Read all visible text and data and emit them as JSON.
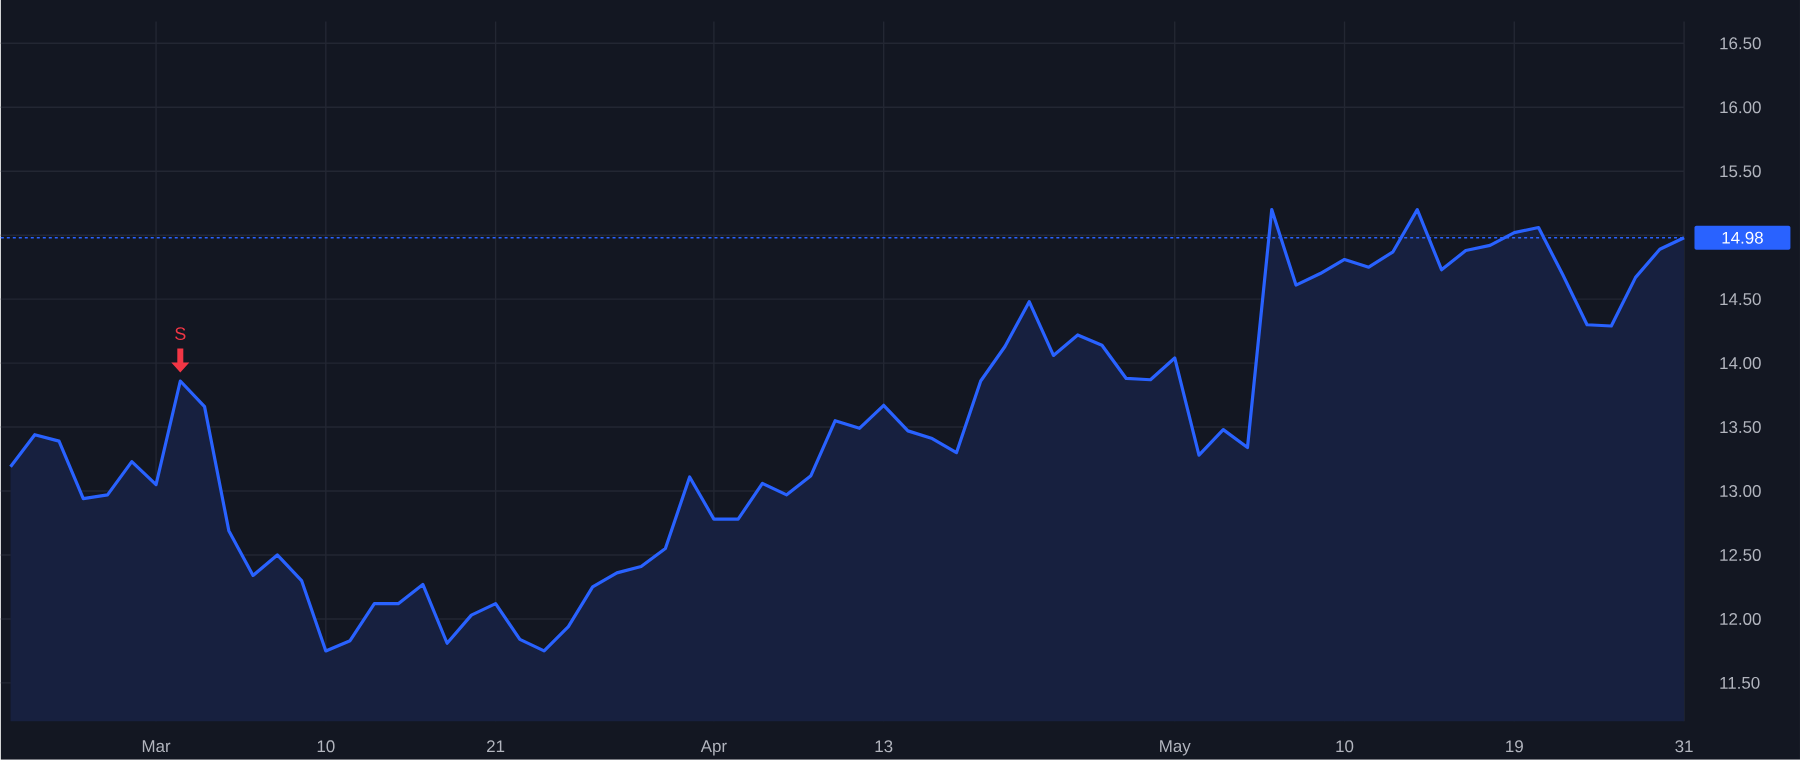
{
  "chart_data": {
    "type": "area",
    "color": "#2962ff",
    "categories": [
      null,
      null,
      null,
      null,
      null,
      null,
      "Mar",
      null,
      null,
      null,
      null,
      null,
      null,
      "10",
      null,
      null,
      null,
      null,
      null,
      null,
      "21",
      null,
      null,
      null,
      null,
      null,
      null,
      null,
      null,
      "Apr",
      null,
      null,
      null,
      null,
      null,
      null,
      "13",
      null,
      null,
      null,
      null,
      null,
      null,
      null,
      null,
      null,
      null,
      null,
      "May",
      null,
      null,
      null,
      null,
      null,
      null,
      "10",
      null,
      null,
      null,
      null,
      null,
      null,
      "19",
      null,
      null,
      null,
      null,
      null,
      null,
      "31"
    ],
    "values": [
      13.19,
      13.44,
      13.39,
      12.94,
      12.97,
      13.23,
      13.05,
      13.86,
      13.66,
      12.69,
      12.34,
      12.5,
      12.3,
      11.75,
      11.83,
      12.12,
      12.12,
      12.27,
      11.81,
      12.03,
      12.12,
      11.84,
      11.75,
      11.94,
      12.25,
      12.36,
      12.41,
      12.55,
      13.11,
      12.78,
      12.78,
      13.06,
      12.97,
      13.12,
      13.55,
      13.49,
      13.67,
      13.47,
      13.41,
      13.3,
      13.86,
      14.13,
      14.48,
      14.06,
      14.22,
      14.14,
      13.88,
      13.87,
      14.04,
      13.28,
      13.48,
      13.34,
      15.2,
      14.61,
      14.7,
      14.81,
      14.75,
      14.87,
      15.2,
      14.73,
      14.88,
      14.92,
      15.02,
      15.06,
      14.69,
      14.3,
      14.29,
      14.67,
      14.89,
      14.98
    ],
    "ylim": [
      11.2,
      16.67
    ],
    "yticks": [
      {
        "value": 11.5,
        "label": "11.50"
      },
      {
        "value": 12,
        "label": "12.00"
      },
      {
        "value": 12.5,
        "label": "12.50"
      },
      {
        "value": 13,
        "label": "13.00"
      },
      {
        "value": 13.5,
        "label": "13.50"
      },
      {
        "value": 14,
        "label": "14.00"
      },
      {
        "value": 14.5,
        "label": "14.50"
      },
      {
        "value": 15,
        "label": null
      },
      {
        "value": 15.5,
        "label": "15.50"
      },
      {
        "value": 16,
        "label": "16.00"
      },
      {
        "value": 16.5,
        "label": "16.50"
      }
    ],
    "grid": true,
    "ref_lines": [
      {
        "axis": "y",
        "value": 14.98,
        "label": "14.98",
        "color": "#2962ff",
        "line_style": "dotted"
      }
    ],
    "annotations": [
      {
        "text": "S",
        "y": 13.86
      }
    ]
  }
}
